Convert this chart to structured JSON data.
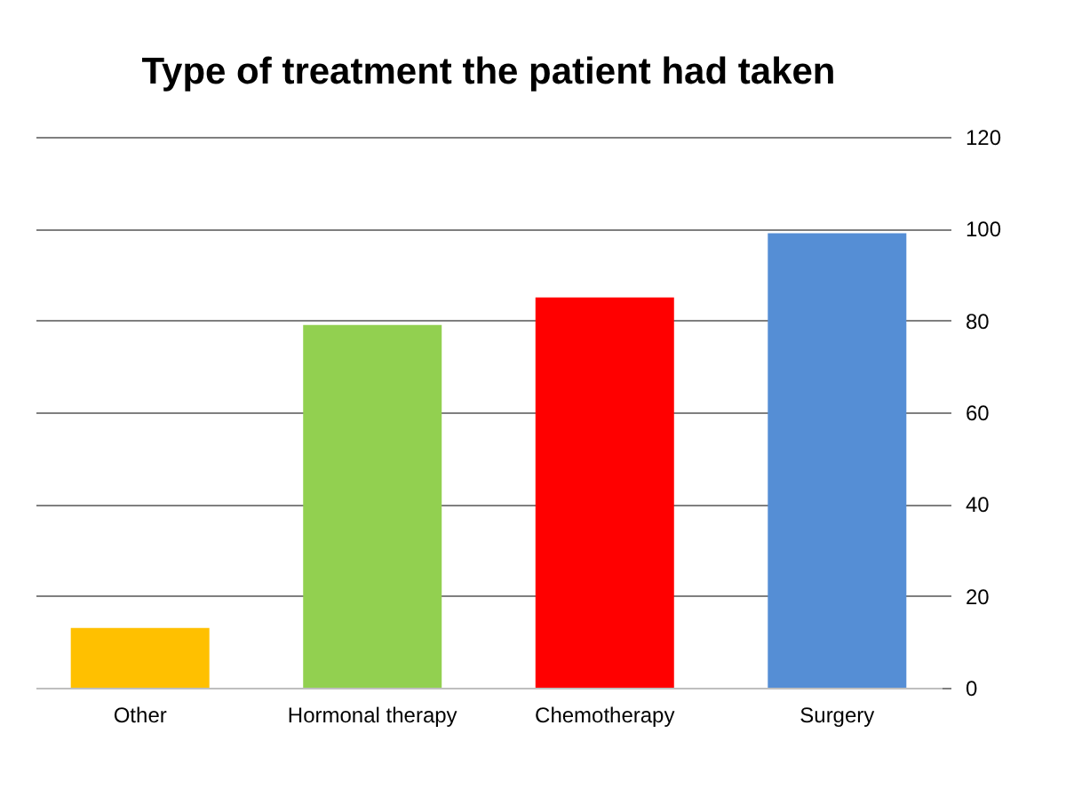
{
  "chart_data": {
    "type": "bar",
    "title": "Type of treatment the patient had taken",
    "categories": [
      "Other",
      "Hormonal therapy",
      "Chemotherapy",
      "Surgery"
    ],
    "values": [
      13,
      79,
      85,
      99
    ],
    "colors": [
      "#ffc000",
      "#92d050",
      "#ff0000",
      "#558ed5"
    ],
    "ylim": [
      0,
      120
    ],
    "yticks": [
      0,
      20,
      40,
      60,
      80,
      100,
      120
    ],
    "grid": "y"
  }
}
